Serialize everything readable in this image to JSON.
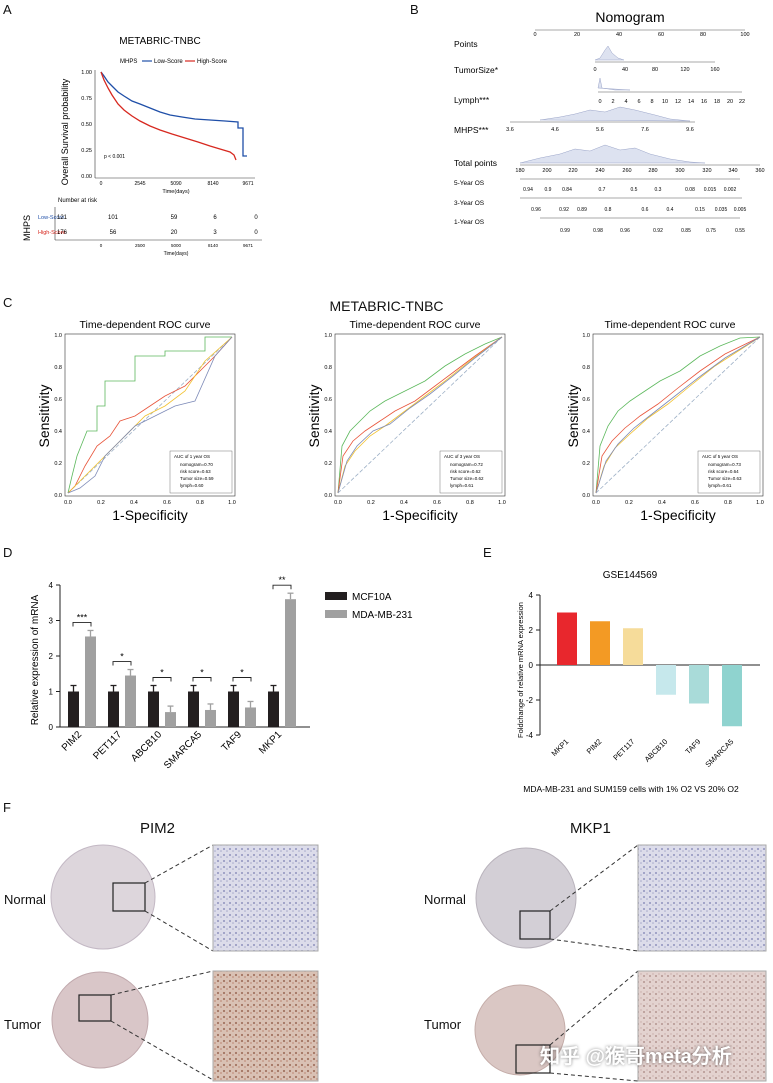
{
  "panels": {
    "A": "A",
    "B": "B",
    "C": "C",
    "D": "D",
    "E": "E",
    "F": "F"
  },
  "panel_a": {
    "title": "METABRIC-TNBC",
    "ylabel": "Overall Survival probability",
    "xlabel": "Time(days)",
    "legend_title": "MHPS",
    "legend_low": "Low-Score",
    "legend_high": "High-Score",
    "pvalue": "p < 0.001",
    "y_ticks": [
      "1.00",
      "0.75",
      "0.50",
      "0.25",
      "0.00"
    ],
    "x_ticks": [
      "0",
      "2545",
      "5090",
      "8140",
      "9671"
    ],
    "risk_title": "Number at risk",
    "risk_ylabel": "MHPS",
    "risk_rows": [
      {
        "label": "Low-Score",
        "values": [
          "121",
          "101",
          "59",
          "6",
          "0"
        ]
      },
      {
        "label": "High-Score",
        "values": [
          "176",
          "56",
          "20",
          "3",
          "0"
        ]
      }
    ],
    "risk_x_ticks": [
      "0",
      "2500",
      "5000",
      "8140",
      "9671"
    ],
    "risk_xlabel": "Time(days)"
  },
  "panel_b": {
    "title": "Nomogram",
    "rows": [
      {
        "label": "Points",
        "ticks": [
          "0",
          "20",
          "40",
          "60",
          "80",
          "100"
        ]
      },
      {
        "label": "TumorSize*",
        "ticks": [
          "0",
          "40",
          "80",
          "120",
          "160"
        ]
      },
      {
        "label": "Lymph***",
        "ticks": [
          "0",
          "2",
          "4",
          "6",
          "8",
          "10",
          "12",
          "14",
          "16",
          "18",
          "20",
          "22"
        ]
      },
      {
        "label": "MHPS***",
        "ticks": [
          "3.6",
          "4.6",
          "5.6",
          "7.6",
          "9.6"
        ]
      },
      {
        "label": "Total points",
        "ticks": [
          "180",
          "200",
          "220",
          "240",
          "260",
          "280",
          "300",
          "320",
          "340",
          "360"
        ]
      },
      {
        "label": "5-Year OS",
        "ticks": [
          "0.94",
          "0.9",
          "0.84",
          "0.7",
          "0.5",
          "0.3",
          "0.08",
          "0.015",
          "0.002"
        ]
      },
      {
        "label": "3-Year OS",
        "ticks": [
          "0.96",
          "0.92",
          "0.89",
          "0.8",
          "0.6",
          "0.4",
          "0.15",
          "0.035",
          "0.005"
        ]
      },
      {
        "label": "1-Year OS",
        "ticks": [
          "0.99",
          "0.98",
          "0.96",
          "0.92",
          "0.85",
          "0.75",
          "0.55"
        ]
      }
    ]
  },
  "panel_c": {
    "title": "METABRIC-TNBC",
    "plots": [
      {
        "title": "Time-dependent ROC curve",
        "legend_title": "AUC of 1 year OS",
        "legend": [
          "nomogram=0.70",
          "risk score=0.63",
          "Tumor size=0.59",
          "lymph=0.60"
        ]
      },
      {
        "title": "Time-dependent ROC curve",
        "legend_title": "AUC of 3 year OS",
        "legend": [
          "nomogram=0.72",
          "risk score=0.62",
          "Tumor size=0.62",
          "lymph=0.61"
        ]
      },
      {
        "title": "Time-dependent ROC curve",
        "legend_title": "AUC of 5 year OS",
        "legend": [
          "nomogram=0.73",
          "risk score=0.64",
          "Tumor size=0.63",
          "lymph=0.61"
        ]
      }
    ],
    "xlabel": "1-Specificity",
    "ylabel": "Sensitivity",
    "ticks": [
      "0.0",
      "0.2",
      "0.4",
      "0.6",
      "0.8",
      "1.0"
    ]
  },
  "chart_data": [
    {
      "type": "bar",
      "title": "",
      "ylabel": "Relative expression of mRNA",
      "categories": [
        "PIM2",
        "PET117",
        "ABCB10",
        "SMARCA5",
        "TAF9",
        "MKP1"
      ],
      "series": [
        {
          "name": "MCF10A",
          "values": [
            1.0,
            1.0,
            1.0,
            1.0,
            1.0,
            1.0
          ],
          "color": "#231f20"
        },
        {
          "name": "MDA-MB-231",
          "values": [
            2.55,
            1.45,
            0.42,
            0.48,
            0.55,
            3.6
          ],
          "color": "#a0a0a0"
        }
      ],
      "significance": [
        "***",
        "*",
        "*",
        "*",
        "*",
        "**"
      ],
      "ylim": [
        0,
        4
      ],
      "yticks": [
        "0",
        "1",
        "2",
        "3",
        "4"
      ]
    },
    {
      "type": "bar",
      "title": "GSE144569",
      "ylabel": "Foldchange of relative mRNA expression",
      "xlabel": "MDA-MB-231 and SUM159 cells with 1% O2 VS 20% O2",
      "categories": [
        "MKP1",
        "PIM2",
        "PET117",
        "ABCB10",
        "TAF9",
        "SMARCA5"
      ],
      "values": [
        3.0,
        2.5,
        2.1,
        -1.7,
        -2.2,
        -3.5
      ],
      "colors": [
        "#e8272d",
        "#f39a24",
        "#f6dc9a",
        "#c6e8ec",
        "#a9dbd9",
        "#8fd3cf"
      ],
      "ylim": [
        -4,
        4
      ],
      "yticks": [
        "4",
        "2",
        "0",
        "-2",
        "-4"
      ]
    }
  ],
  "panel_f": {
    "left_title": "PIM2",
    "right_title": "MKP1",
    "row_normal": "Normal",
    "row_tumor": "Tumor",
    "watermark": "知乎 @猴哥meta分析"
  }
}
